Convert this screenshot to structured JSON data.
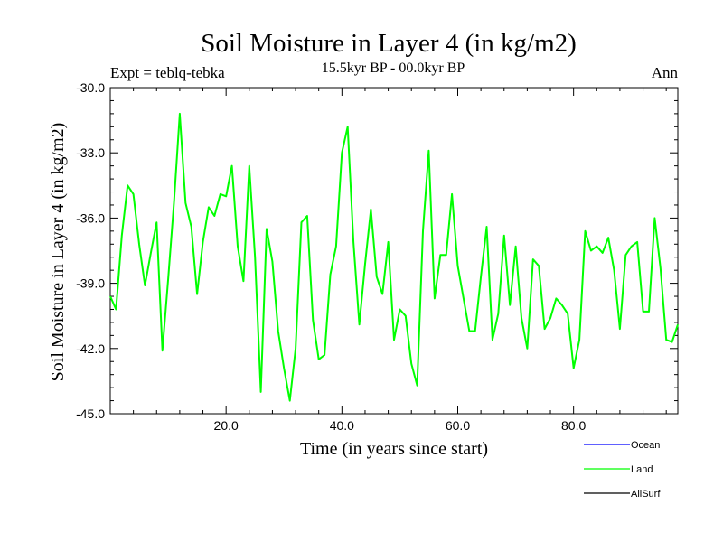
{
  "chart_data": {
    "type": "line",
    "title": "Soil Moisture in Layer 4 (in kg/m2)",
    "subtitle": "15.5kyr BP - 00.0kyr BP",
    "left_label": "Expt = teblq-tebka",
    "right_label": "Ann",
    "xlabel": "Time (in years since start)",
    "ylabel": "Soil Moisture in Layer 4 (in kg/m2)",
    "xlim": [
      0,
      98
    ],
    "ylim": [
      -45.0,
      -30.0
    ],
    "x_ticks": [
      20,
      40,
      60,
      80
    ],
    "x_tick_labels": [
      "20.0",
      "40.0",
      "60.0",
      "80.0"
    ],
    "y_ticks": [
      -30,
      -33,
      -36,
      -39,
      -42,
      -45
    ],
    "y_tick_labels": [
      "-30.0",
      "-33.0",
      "-36.0",
      "-39.0",
      "-42.0",
      "-45.0"
    ],
    "legend": {
      "placement": "bottom-right",
      "entries": [
        {
          "name": "Ocean",
          "color": "#0000ff"
        },
        {
          "name": "Land",
          "color": "#00ff00"
        },
        {
          "name": "AllSurf",
          "color": "#000000"
        }
      ]
    },
    "series": [
      {
        "name": "Land",
        "color": "#00ff00",
        "x": [
          0,
          1,
          2,
          3,
          4,
          5,
          6,
          7,
          8,
          9,
          10,
          11,
          12,
          13,
          14,
          15,
          16,
          17,
          18,
          19,
          20,
          21,
          22,
          23,
          24,
          25,
          26,
          27,
          28,
          29,
          30,
          31,
          32,
          33,
          34,
          35,
          36,
          37,
          38,
          39,
          40,
          41,
          42,
          43,
          44,
          45,
          46,
          47,
          48,
          49,
          50,
          51,
          52,
          53,
          54,
          55,
          56,
          57,
          58,
          59,
          60,
          61,
          62,
          63,
          64,
          65,
          66,
          67,
          68,
          69,
          70,
          71,
          72,
          73,
          74,
          75,
          76,
          77,
          78,
          79,
          80,
          81,
          82,
          83,
          84,
          85,
          86,
          87,
          88,
          89,
          90,
          91,
          92,
          93,
          94,
          95,
          96,
          97,
          98
        ],
        "values": [
          -39.6,
          -40.2,
          -36.8,
          -34.5,
          -34.9,
          -37.2,
          -39.1,
          -37.6,
          -36.2,
          -42.1,
          -38.8,
          -35.3,
          -31.2,
          -35.3,
          -36.4,
          -39.5,
          -37.1,
          -35.5,
          -35.9,
          -34.9,
          -35.0,
          -33.6,
          -37.3,
          -38.9,
          -33.6,
          -37.8,
          -44.0,
          -36.5,
          -38.0,
          -41.2,
          -42.9,
          -44.4,
          -42.0,
          -36.2,
          -35.9,
          -40.7,
          -42.5,
          -42.3,
          -38.6,
          -37.3,
          -33.0,
          -31.8,
          -37.1,
          -40.9,
          -38.1,
          -35.6,
          -38.7,
          -39.5,
          -37.1,
          -41.6,
          -40.2,
          -40.5,
          -42.7,
          -43.7,
          -36.6,
          -32.9,
          -39.7,
          -37.7,
          -37.7,
          -34.9,
          -38.2,
          -39.7,
          -41.2,
          -41.2,
          -38.7,
          -36.4,
          -41.6,
          -40.4,
          -36.8,
          -40.0,
          -37.3,
          -40.6,
          -42.0,
          -37.9,
          -38.2,
          -41.1,
          -40.6,
          -39.7,
          -40.0,
          -40.4,
          -42.9,
          -41.6,
          -36.6,
          -37.5,
          -37.3,
          -37.6,
          -36.9,
          -38.4,
          -41.1,
          -37.7,
          -37.3,
          -37.1,
          -40.3,
          -40.3,
          -36.0,
          -38.3,
          -41.6,
          -41.7,
          -40.9
        ]
      }
    ]
  }
}
